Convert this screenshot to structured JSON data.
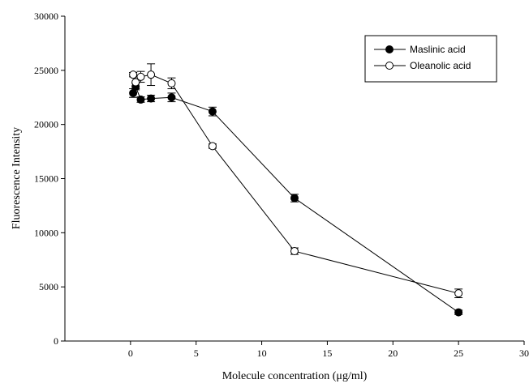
{
  "chart_data": {
    "type": "line",
    "title": "",
    "xlabel": "Molecule concentration (μg/ml)",
    "ylabel": "Fluorescence Intensity",
    "xlim": [
      -5,
      30
    ],
    "ylim": [
      0,
      30000
    ],
    "x_ticks": [
      0,
      5,
      10,
      15,
      20,
      25,
      30
    ],
    "y_ticks": [
      0,
      5000,
      10000,
      15000,
      20000,
      25000,
      30000
    ],
    "grid": false,
    "legend_position": "top-right",
    "series": [
      {
        "name": "Maslinic acid",
        "marker": "filled-circle",
        "color": "#000000",
        "x": [
          0.2,
          0.39,
          0.78,
          1.56,
          3.13,
          6.25,
          12.5,
          25
        ],
        "y": [
          22900,
          23500,
          22300,
          22400,
          22500,
          21200,
          13200,
          2650
        ],
        "err": [
          400,
          300,
          250,
          300,
          400,
          400,
          350,
          200
        ]
      },
      {
        "name": "Oleanolic acid",
        "marker": "open-circle",
        "color": "#000000",
        "x": [
          0.2,
          0.39,
          0.78,
          1.56,
          3.13,
          6.25,
          12.5,
          25
        ],
        "y": [
          24600,
          23900,
          24400,
          24600,
          23800,
          18000,
          8300,
          4400
        ],
        "err": [
          200,
          600,
          500,
          1000,
          500,
          200,
          300,
          400
        ]
      }
    ]
  }
}
